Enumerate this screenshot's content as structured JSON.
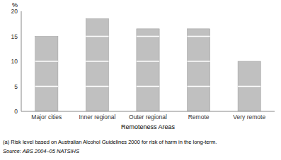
{
  "chart_data": {
    "type": "bar",
    "categories": [
      "Major cities",
      "Inner regional",
      "Outer regional",
      "Remote",
      "Very remote"
    ],
    "values": [
      15.0,
      18.5,
      16.5,
      16.5,
      10.0
    ],
    "segment_breaks": [
      5,
      10,
      15
    ],
    "color": "#c0c0c0",
    "x_label": "Remoteness Areas",
    "y_label": "%",
    "ylim": [
      0,
      20
    ],
    "yticks": [
      0,
      5,
      10,
      15,
      20
    ],
    "grid": false,
    "annotations": [
      "(a) Risk level based on Australian Alcohol Guidelines 2000 for risk of harm in the long-term.",
      "Source: ABS 2004–05 NATSIHS"
    ]
  }
}
